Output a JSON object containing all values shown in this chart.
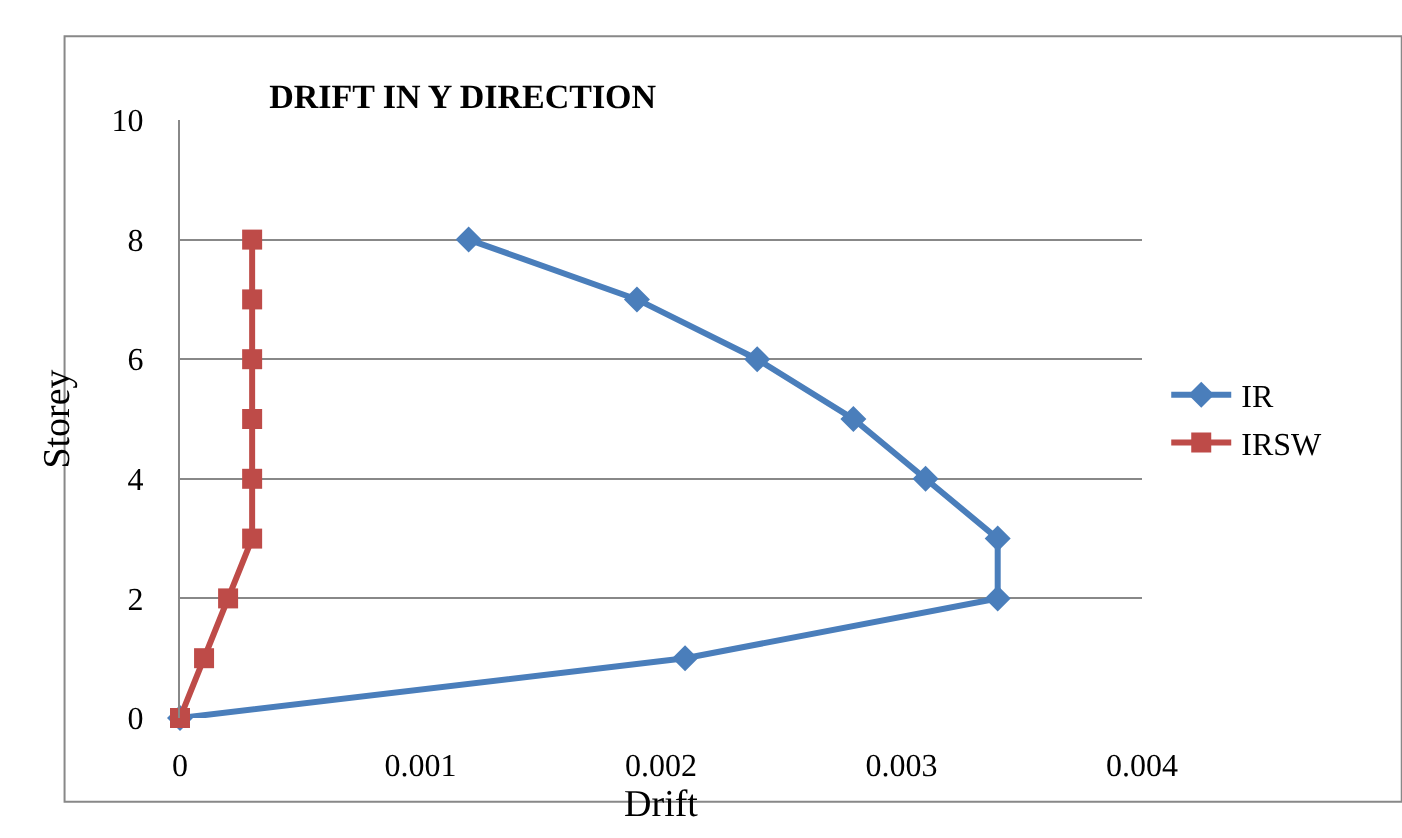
{
  "chart_data": {
    "type": "line",
    "title": "DRIFT IN Y DIRECTION",
    "xlabel": "Drift",
    "ylabel": "Storey",
    "series": [
      {
        "name": "IR",
        "color": "#4a7ebb",
        "marker": "diamond",
        "x": [
          0,
          0.0021,
          0.0034,
          0.0034,
          0.0031,
          0.0028,
          0.0024,
          0.0019,
          0.0012
        ],
        "values": [
          0,
          1,
          2,
          3,
          4,
          5,
          6,
          7,
          8
        ]
      },
      {
        "name": "IRSW",
        "color": "#be4b48",
        "marker": "square",
        "x": [
          0,
          0.0001,
          0.0002,
          0.0003,
          0.0003,
          0.0003,
          0.0003,
          0.0003,
          0.0003
        ],
        "values": [
          0,
          1,
          2,
          3,
          4,
          5,
          6,
          7,
          8
        ]
      }
    ],
    "xlim": [
      0,
      0.004
    ],
    "xticks": [
      0,
      0.001,
      0.002,
      0.003,
      0.004
    ],
    "ylim": [
      0,
      10
    ],
    "yticks": [
      0,
      2,
      4,
      6,
      8,
      10
    ],
    "grid": "y",
    "legend": "right"
  }
}
